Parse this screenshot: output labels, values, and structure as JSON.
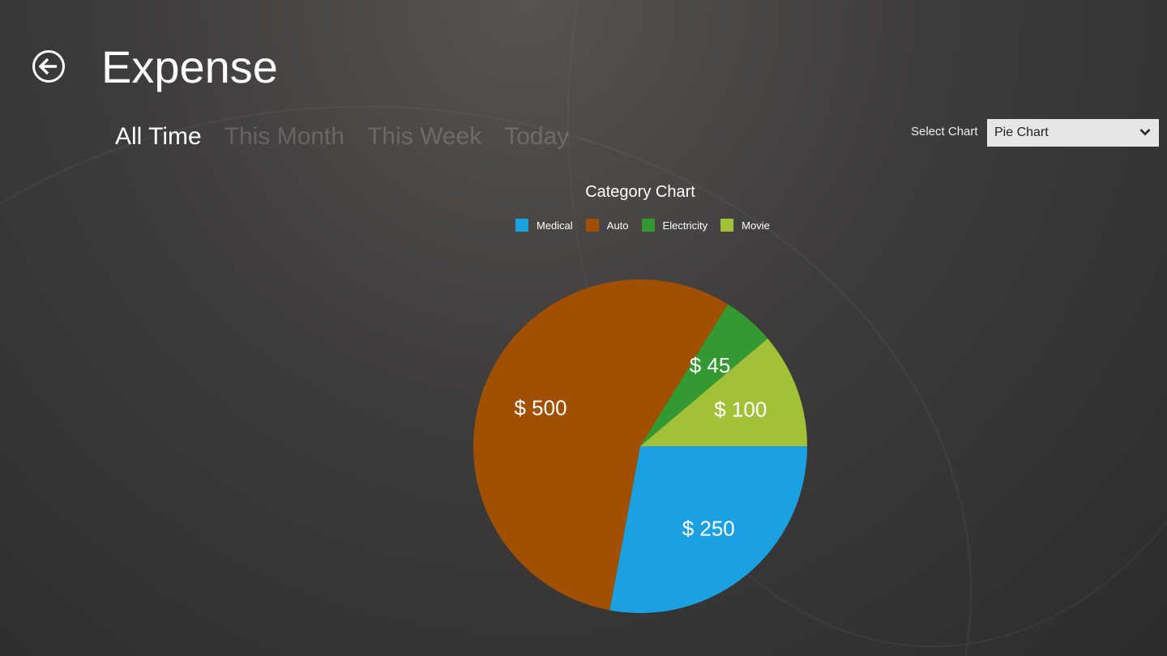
{
  "header": {
    "title": "Expense",
    "back_icon": "back-arrow-circle-icon"
  },
  "tabs": [
    {
      "label": "All Time",
      "active": true
    },
    {
      "label": "This Month",
      "active": false
    },
    {
      "label": "This Week",
      "active": false
    },
    {
      "label": "Today",
      "active": false
    }
  ],
  "select_chart": {
    "label": "Select Chart",
    "value": "Pie Chart",
    "icon": "chevron-down-icon"
  },
  "chart_data": {
    "type": "pie",
    "title": "Category Chart",
    "legend_position": "top",
    "categories": [
      "Medical",
      "Auto",
      "Electricity",
      "Movie"
    ],
    "values": [
      250,
      500,
      45,
      100
    ],
    "labels": [
      "$ 250",
      "$ 500",
      "$ 45",
      "$ 100"
    ],
    "colors": [
      "#1ba1e2",
      "#a05000",
      "#339933",
      "#a2c139"
    ]
  }
}
